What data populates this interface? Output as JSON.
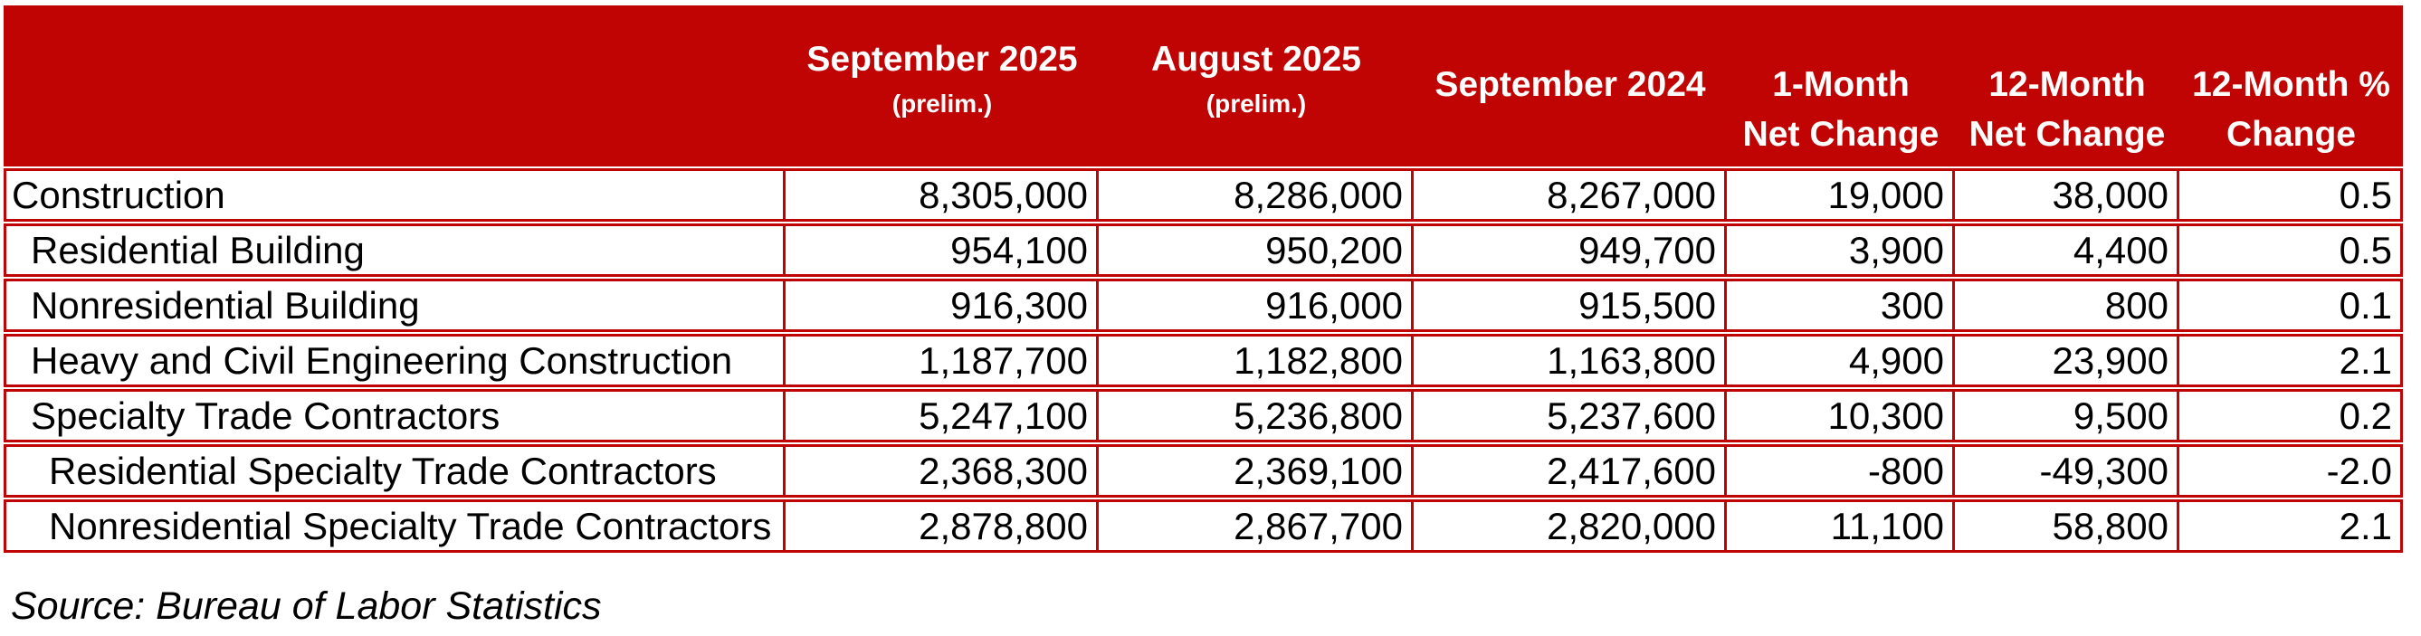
{
  "colors": {
    "table_red": "#C00404",
    "header_text": "#ffffff",
    "body_text": "#000000"
  },
  "footer": {
    "source": "Source: Bureau of Labor Statistics"
  },
  "chart_data": {
    "type": "table",
    "title": "",
    "columns": [
      {
        "label": "",
        "sub": ""
      },
      {
        "label": "September 2025",
        "sub": "(prelim.)"
      },
      {
        "label": "August 2025",
        "sub": "(prelim.)"
      },
      {
        "label": "September 2024",
        "sub": ""
      },
      {
        "label": "1-Month",
        "sub": "Net Change"
      },
      {
        "label": "12-Month",
        "sub": "Net Change"
      },
      {
        "label": "12-Month %",
        "sub": "Change"
      }
    ],
    "rows": [
      {
        "label": "Construction",
        "indent": 0,
        "values": [
          "8,305,000",
          "8,286,000",
          "8,267,000",
          "19,000",
          "38,000",
          "0.5"
        ]
      },
      {
        "label": "Residential Building",
        "indent": 1,
        "values": [
          "954,100",
          "950,200",
          "949,700",
          "3,900",
          "4,400",
          "0.5"
        ]
      },
      {
        "label": "Nonresidential Building",
        "indent": 1,
        "values": [
          "916,300",
          "916,000",
          "915,500",
          "300",
          "800",
          "0.1"
        ]
      },
      {
        "label": "Heavy and Civil Engineering Construction",
        "indent": 1,
        "values": [
          "1,187,700",
          "1,182,800",
          "1,163,800",
          "4,900",
          "23,900",
          "2.1"
        ]
      },
      {
        "label": "Specialty Trade Contractors",
        "indent": 1,
        "values": [
          "5,247,100",
          "5,236,800",
          "5,237,600",
          "10,300",
          "9,500",
          "0.2"
        ]
      },
      {
        "label": "Residential Specialty Trade Contractors",
        "indent": 2,
        "values": [
          "2,368,300",
          "2,369,100",
          "2,417,600",
          "-800",
          "-49,300",
          "-2.0"
        ]
      },
      {
        "label": "Nonresidential Specialty Trade Contractors",
        "indent": 2,
        "values": [
          "2,878,800",
          "2,867,700",
          "2,820,000",
          "11,100",
          "58,800",
          "2.1"
        ]
      }
    ]
  }
}
